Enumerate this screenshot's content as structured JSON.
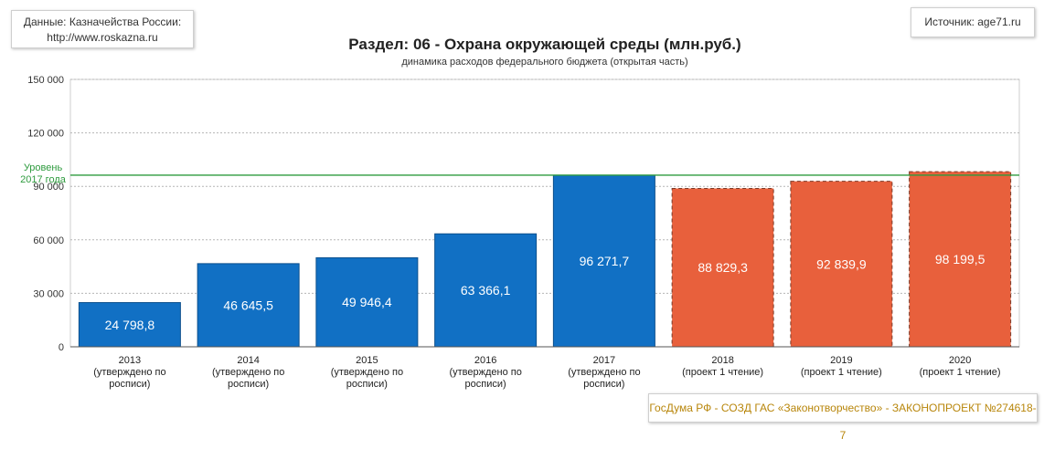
{
  "source": {
    "line1": "Данные: Казначейства России:",
    "line2": "http://www.roskazna.ru"
  },
  "origin": "Источник: age71.ru",
  "law": "ГосДума РФ - СОЗД ГАС «Законотворчество» - ЗАКОНОПРОЕКТ №274618-7",
  "chart_data": {
    "type": "bar",
    "title": "Раздел: 06 - Охрана окружающей среды (млн.руб.)",
    "subtitle": "динамика расходов федерального бюджета (открытая часть)",
    "categories": [
      [
        "2013",
        "(утверждено по",
        "росписи)"
      ],
      [
        "2014",
        "(утверждено по",
        "росписи)"
      ],
      [
        "2015",
        "(утверждено по",
        "росписи)"
      ],
      [
        "2016",
        "(утверждено по",
        "росписи)"
      ],
      [
        "2017",
        "(утверждено по",
        "росписи)"
      ],
      [
        "2018",
        "(проект 1 чтение)"
      ],
      [
        "2019",
        "(проект 1 чтение)"
      ],
      [
        "2020",
        "(проект 1 чтение)"
      ]
    ],
    "values": [
      24798.8,
      46645.5,
      49946.4,
      63366.1,
      96271.7,
      88829.3,
      92839.9,
      98199.5
    ],
    "value_labels": [
      "24 798,8",
      "46 645,5",
      "49 946,4",
      "63 366,1",
      "96 271,7",
      "88 829,3",
      "92 839,9",
      "98 199,5"
    ],
    "status": [
      "approved",
      "approved",
      "approved",
      "approved",
      "approved",
      "project",
      "project",
      "project"
    ],
    "colors": {
      "approved": "#1170c4",
      "project": "#e8603c",
      "reference": "#2e9b3e",
      "grid": "#b5b5b5"
    },
    "yticks": [
      0,
      30000,
      60000,
      90000,
      120000,
      150000
    ],
    "ytick_labels": [
      "0",
      "30 000",
      "60 000",
      "90 000",
      "120 000",
      "150 000"
    ],
    "ylim": [
      0,
      150000
    ],
    "reference_line": {
      "value": 96271.7,
      "label_line1": "Уровень",
      "label_line2": "2017 года"
    },
    "grid": true
  }
}
